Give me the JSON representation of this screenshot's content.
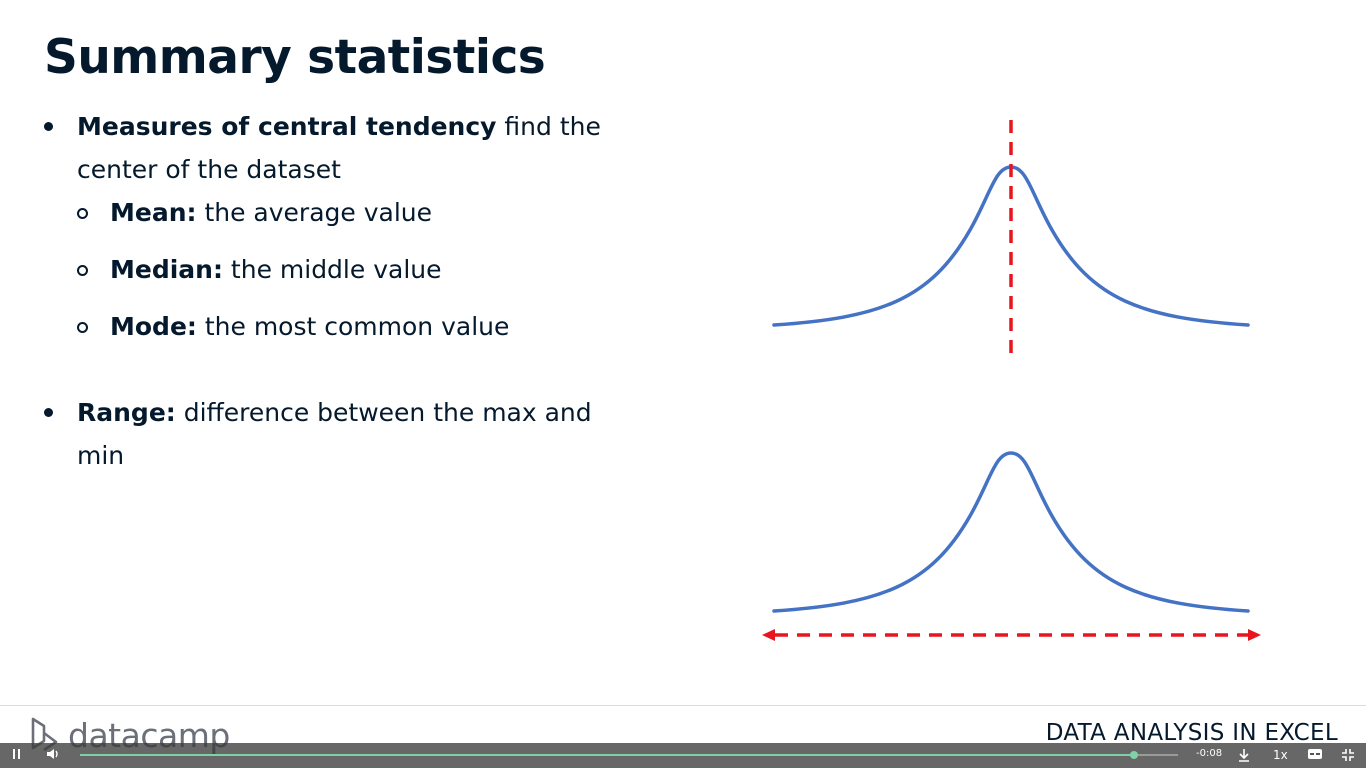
{
  "slide": {
    "title": "Summary statistics",
    "bullets": [
      {
        "bold": "Measures of central tendency",
        "text": " find the center of the dataset",
        "subitems": [
          {
            "bold": "Mean:",
            "text": " the average value"
          },
          {
            "bold": "Median:",
            "text": " the middle value"
          },
          {
            "bold": "Mode:",
            "text": " the most common value"
          }
        ]
      },
      {
        "bold": "Range:",
        "text": " difference between the max and min"
      }
    ],
    "colors": {
      "curve": "#4472c4",
      "marker": "#e8141e",
      "text": "#05192d"
    }
  },
  "footer": {
    "brand": "datacamp",
    "course_title": "DATA ANALYSIS IN EXCEL"
  },
  "player": {
    "play_state_icon": "pause-icon",
    "volume_icon": "volume-icon",
    "time_remaining": "-0:08",
    "progress": 0.96,
    "speed": "1x",
    "download_icon": "download-icon",
    "captions_icon": "captions-icon",
    "fullscreen_icon": "exit-fullscreen-icon"
  }
}
